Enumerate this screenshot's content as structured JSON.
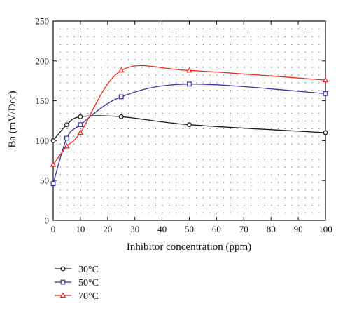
{
  "chart_data": {
    "type": "line",
    "xlabel": "Inhibitor concentration (ppm)",
    "ylabel": "Ba (mV/Dec)",
    "xlim": [
      0,
      100
    ],
    "ylim": [
      0,
      250
    ],
    "xticks": [
      0,
      10,
      20,
      30,
      40,
      50,
      60,
      70,
      80,
      90,
      100
    ],
    "yticks": [
      0,
      50,
      100,
      150,
      200,
      250
    ],
    "grid": "dotted",
    "legend_position": "bottom-left, below plot",
    "series": [
      {
        "name": "30°C",
        "color": "#1a1a1a",
        "marker": "circle",
        "x": [
          0,
          5,
          10,
          25,
          50,
          100
        ],
        "y": [
          100,
          120,
          130,
          130,
          120,
          110
        ]
      },
      {
        "name": "50°C",
        "color": "#3535a0",
        "marker": "square",
        "x": [
          0,
          5,
          10,
          25,
          50,
          100
        ],
        "y": [
          46,
          103,
          120,
          155,
          171,
          159
        ]
      },
      {
        "name": "70°C",
        "color": "#e8291c",
        "marker": "triangle",
        "x": [
          0,
          5,
          10,
          25,
          50,
          100
        ],
        "y": [
          70,
          93,
          110,
          188,
          188,
          176
        ]
      }
    ]
  }
}
